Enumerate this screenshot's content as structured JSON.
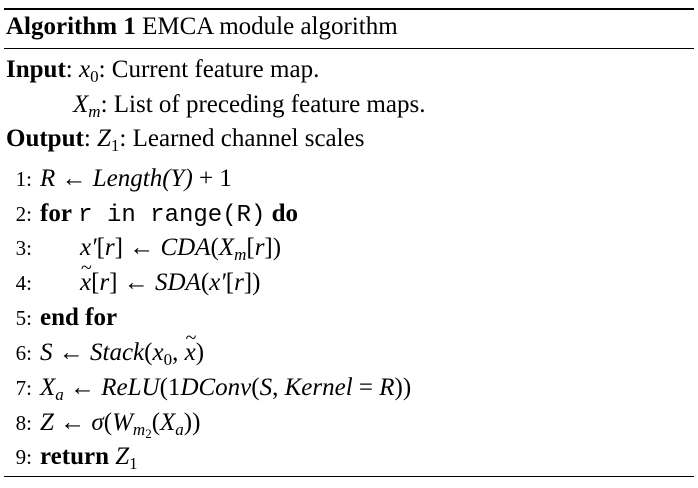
{
  "algorithm": {
    "caption_label": "Algorithm 1",
    "caption_text": "EMCA module algorithm",
    "input_label": "Input",
    "input_1_var": "x",
    "input_1_sub": "0",
    "input_1_desc": ": Current feature map.",
    "input_2_var": "X",
    "input_2_sub": "m",
    "input_2_desc": ": List of preceding feature maps.",
    "output_label": "Output",
    "output_var": "Z",
    "output_sub": "1",
    "output_desc": ": Learned channel scales",
    "steps": [
      {
        "num": "1:"
      },
      {
        "num": "2:",
        "kw_for": "for",
        "code": "r in range(R)",
        "kw_do": "do"
      },
      {
        "num": "3:"
      },
      {
        "num": "4:"
      },
      {
        "num": "5:",
        "kw": "end for"
      },
      {
        "num": "6:"
      },
      {
        "num": "7:"
      },
      {
        "num": "8:"
      },
      {
        "num": "9:",
        "kw": "return"
      }
    ]
  }
}
